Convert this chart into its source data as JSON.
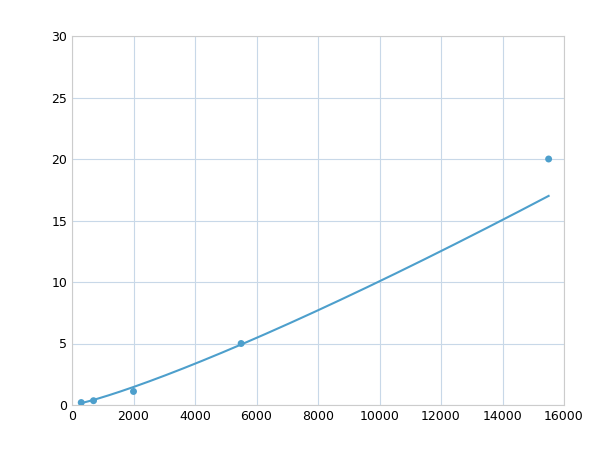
{
  "x_points": [
    300,
    700,
    2000,
    5500,
    15500
  ],
  "y_points": [
    0.2,
    0.35,
    1.1,
    5.0,
    20.0
  ],
  "line_color": "#4d9fcc",
  "marker_color": "#4d9fcc",
  "marker_size": 5,
  "line_width": 1.5,
  "xlim": [
    0,
    16000
  ],
  "ylim": [
    0,
    30
  ],
  "xticks": [
    0,
    2000,
    4000,
    6000,
    8000,
    10000,
    12000,
    14000,
    16000
  ],
  "yticks": [
    0,
    5,
    10,
    15,
    20,
    25,
    30
  ],
  "grid_color": "#c8d8e8",
  "background_color": "#ffffff",
  "figsize": [
    6.0,
    4.5
  ],
  "dpi": 100
}
